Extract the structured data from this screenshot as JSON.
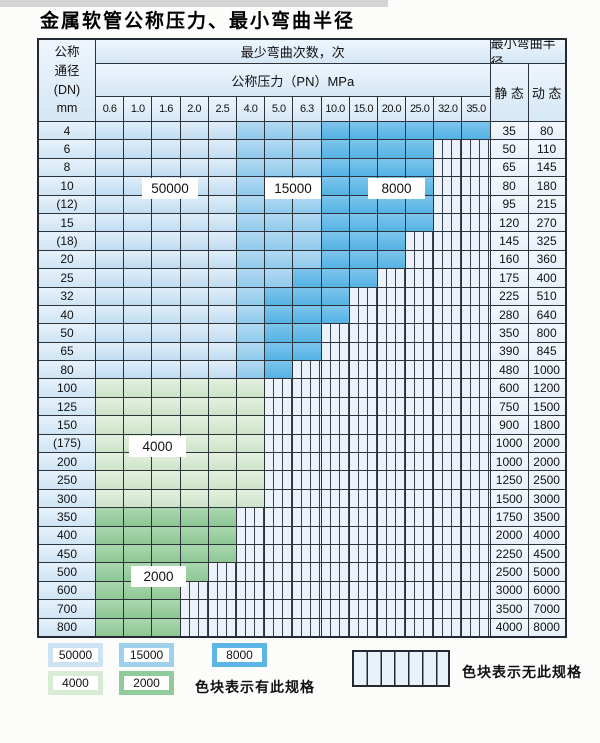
{
  "title": "金属软管公称压力、最小弯曲半径",
  "header": {
    "dn_lines": [
      "公称",
      "通径",
      "(DN)",
      "mm"
    ],
    "cycles_label": "最少弯曲次数，次",
    "pressure_label": "公称压力（PN）MPa",
    "radius_label": "最小弯曲半径",
    "static_label": "静 态",
    "dynamic_label": "动 态",
    "pn_columns": [
      "0.6",
      "1.0",
      "1.6",
      "2.0",
      "2.5",
      "4.0",
      "5.0",
      "6.3",
      "10.0",
      "15.0",
      "20.0",
      "25.0",
      "32.0",
      "35.0"
    ]
  },
  "overlay_labels": {
    "l50000": "50000",
    "l15000": "15000",
    "l8000": "8000",
    "l4000": "4000",
    "l2000": "2000"
  },
  "legend": {
    "blocks": [
      {
        "label": "50000",
        "color": "#cde3f4"
      },
      {
        "label": "15000",
        "color": "#9fd0ee"
      },
      {
        "label": "8000",
        "color": "#5cb5e6"
      },
      {
        "label": "4000",
        "color": "#d8ebd5"
      },
      {
        "label": "2000",
        "color": "#90cb9c"
      }
    ],
    "has_spec_text": "色块表示有此规格",
    "no_spec_text": "色块表示无此规格"
  },
  "colors": {
    "cycles_50000": "#cde3f4",
    "cycles_15000": "#9fd0ee",
    "cycles_8000": "#5cb5e6",
    "cycles_4000": "#d8ebd5",
    "cycles_2000": "#90cb9c",
    "no_spec_bg": "#ebf2f9",
    "grid_line": "#2c333b",
    "header_bg": "#dcebf7"
  },
  "chart_data": {
    "type": "table",
    "title": "金属软管公称压力、最小弯曲半径",
    "pn_columns_mpa": [
      0.6,
      1.0,
      1.6,
      2.0,
      2.5,
      4.0,
      5.0,
      6.3,
      10.0,
      15.0,
      20.0,
      25.0,
      32.0,
      35.0
    ],
    "cell_code_cycles": {
      "a": 50000,
      "b": 15000,
      "c": 8000,
      "d": 4000,
      "e": 2000,
      "x": null
    },
    "radius_units_note": "静 态 / 动 态",
    "rows": [
      {
        "dn": "4",
        "cells": "aaaaabbbcccccc",
        "static": "35",
        "dynamic": "80"
      },
      {
        "dn": "6",
        "cells": "aaaaabbbccccxx",
        "static": "50",
        "dynamic": "110"
      },
      {
        "dn": "8",
        "cells": "aaaaabbbccccxx",
        "static": "65",
        "dynamic": "145"
      },
      {
        "dn": "10",
        "cells": "aaaaabbbccccxx",
        "static": "80",
        "dynamic": "180"
      },
      {
        "dn": "(12)",
        "cells": "aaaaabbbccccxx",
        "static": "95",
        "dynamic": "215"
      },
      {
        "dn": "15",
        "cells": "aaaaabbbccccxx",
        "static": "120",
        "dynamic": "270"
      },
      {
        "dn": "(18)",
        "cells": "aaaaabbbcccxxx",
        "static": "145",
        "dynamic": "325"
      },
      {
        "dn": "20",
        "cells": "aaaaabbbcccxxx",
        "static": "160",
        "dynamic": "360"
      },
      {
        "dn": "25",
        "cells": "aaaaabbcccxxxx",
        "static": "175",
        "dynamic": "400"
      },
      {
        "dn": "32",
        "cells": "aaaaabcccxxxxx",
        "static": "225",
        "dynamic": "510"
      },
      {
        "dn": "40",
        "cells": "aaaaabcccxxxxx",
        "static": "280",
        "dynamic": "640"
      },
      {
        "dn": "50",
        "cells": "aaaaabccxxxxxx",
        "static": "350",
        "dynamic": "800"
      },
      {
        "dn": "65",
        "cells": "aaaaabccxxxxxx",
        "static": "390",
        "dynamic": "845"
      },
      {
        "dn": "80",
        "cells": "aaaaabcxxxxxxx",
        "static": "480",
        "dynamic": "1000"
      },
      {
        "dn": "100",
        "cells": "ddddddxxxxxxxx",
        "static": "600",
        "dynamic": "1200"
      },
      {
        "dn": "125",
        "cells": "ddddddxxxxxxxx",
        "static": "750",
        "dynamic": "1500"
      },
      {
        "dn": "150",
        "cells": "ddddddxxxxxxxx",
        "static": "900",
        "dynamic": "1800"
      },
      {
        "dn": "(175)",
        "cells": "ddddddxxxxxxxx",
        "static": "1000",
        "dynamic": "2000"
      },
      {
        "dn": "200",
        "cells": "ddddddxxxxxxxx",
        "static": "1000",
        "dynamic": "2000"
      },
      {
        "dn": "250",
        "cells": "ddddddxxxxxxxx",
        "static": "1250",
        "dynamic": "2500"
      },
      {
        "dn": "300",
        "cells": "ddddddxxxxxxxx",
        "static": "1500",
        "dynamic": "3000"
      },
      {
        "dn": "350",
        "cells": "eeeeexxxxxxxxx",
        "static": "1750",
        "dynamic": "3500"
      },
      {
        "dn": "400",
        "cells": "eeeeexxxxxxxxx",
        "static": "2000",
        "dynamic": "4000"
      },
      {
        "dn": "450",
        "cells": "eeeeexxxxxxxxx",
        "static": "2250",
        "dynamic": "4500"
      },
      {
        "dn": "500",
        "cells": "eeeexxxxxxxxxx",
        "static": "2500",
        "dynamic": "5000"
      },
      {
        "dn": "600",
        "cells": "eeexxxxxxxxxxx",
        "static": "3000",
        "dynamic": "6000"
      },
      {
        "dn": "700",
        "cells": "eeexxxxxxxxxxx",
        "static": "3500",
        "dynamic": "7000"
      },
      {
        "dn": "800",
        "cells": "eeexxxxxxxxxxx",
        "static": "4000",
        "dynamic": "8000"
      }
    ]
  }
}
